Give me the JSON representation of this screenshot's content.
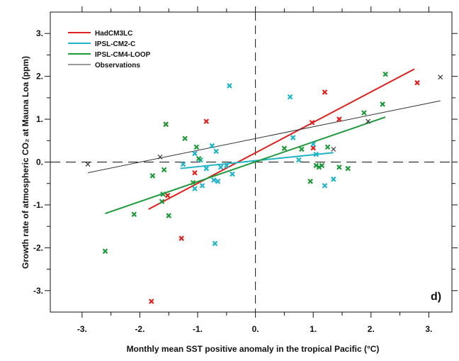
{
  "chart_data": {
    "type": "scatter",
    "title": "",
    "xlabel": "Monthly mean SST positive anomaly in the tropical Pacific (°C)",
    "ylabel": "Growth rate of atmospheric CO₂ at Mauna Loa (ppm)",
    "panel_label": "d)",
    "xlim": [
      -3.55,
      3.4
    ],
    "ylim": [
      -3.5,
      3.5
    ],
    "xticks": [
      -3,
      -2,
      -1,
      0,
      1,
      2,
      3
    ],
    "xtick_labels": [
      "-3.",
      "-2.",
      "-1.",
      "0.",
      "1.",
      "2.",
      "3."
    ],
    "yticks": [
      -3,
      -2,
      -1,
      0,
      1,
      2,
      3
    ],
    "ytick_labels": [
      "-3.",
      "-2.",
      "-1.",
      "0.",
      "1.",
      "2.",
      "3."
    ],
    "grid": false,
    "legend_position": "top-left",
    "reference_lines": {
      "x": 0,
      "y": 0,
      "style": "dashed"
    },
    "series": [
      {
        "name": "HadCM3LC",
        "color": "#e0201c",
        "marker": "x",
        "points": [
          [
            -1.8,
            -3.25
          ],
          [
            -1.55,
            0.88
          ],
          [
            -1.52,
            -0.78
          ],
          [
            -1.28,
            -1.78
          ],
          [
            -1.05,
            -0.25
          ],
          [
            -0.85,
            0.95
          ],
          [
            0.98,
            0.92
          ],
          [
            1.0,
            0.33
          ],
          [
            1.2,
            1.63
          ],
          [
            1.45,
            1.0
          ],
          [
            2.8,
            1.85
          ]
        ],
        "fit": [
          [
            -1.85,
            -1.1
          ],
          [
            2.75,
            2.17
          ]
        ]
      },
      {
        "name": "IPSL-CM2-C",
        "color": "#1fb3c8",
        "marker": "x",
        "points": [
          [
            -1.25,
            -0.05
          ],
          [
            -1.05,
            0.2
          ],
          [
            -0.95,
            0.05
          ],
          [
            -0.92,
            -0.55
          ],
          [
            -0.85,
            -0.15
          ],
          [
            -0.75,
            0.38
          ],
          [
            -0.72,
            -0.42
          ],
          [
            -0.7,
            -1.9
          ],
          [
            -0.68,
            0.25
          ],
          [
            -0.65,
            -0.45
          ],
          [
            -0.6,
            -0.12
          ],
          [
            -0.5,
            -0.08
          ],
          [
            -0.45,
            1.78
          ],
          [
            -0.4,
            -0.28
          ],
          [
            0.6,
            1.52
          ],
          [
            0.65,
            0.57
          ],
          [
            0.75,
            0.05
          ],
          [
            1.0,
            0.42
          ],
          [
            1.05,
            0.18
          ],
          [
            1.2,
            -0.55
          ],
          [
            1.35,
            -0.4
          ],
          [
            -1.05,
            -0.62
          ]
        ],
        "fit": [
          [
            -1.3,
            -0.15
          ],
          [
            1.35,
            0.22
          ]
        ]
      },
      {
        "name": "IPSL-CM4-LOOP",
        "color": "#1e9a3c",
        "marker": "x",
        "points": [
          [
            -2.6,
            -2.08
          ],
          [
            -2.1,
            -1.22
          ],
          [
            -1.78,
            -0.32
          ],
          [
            -1.62,
            -0.92
          ],
          [
            -1.6,
            -0.75
          ],
          [
            -1.58,
            -0.18
          ],
          [
            -1.5,
            -1.25
          ],
          [
            -1.55,
            0.88
          ],
          [
            -1.22,
            0.55
          ],
          [
            -1.08,
            -0.48
          ],
          [
            -1.02,
            0.35
          ],
          [
            -0.98,
            0.08
          ],
          [
            0.5,
            0.32
          ],
          [
            0.8,
            0.3
          ],
          [
            0.95,
            -0.45
          ],
          [
            1.05,
            -0.08
          ],
          [
            1.1,
            -0.12
          ],
          [
            1.15,
            -0.08
          ],
          [
            1.25,
            0.35
          ],
          [
            1.45,
            -0.12
          ],
          [
            1.6,
            -0.15
          ],
          [
            1.88,
            1.15
          ],
          [
            2.2,
            1.35
          ],
          [
            2.25,
            2.05
          ]
        ],
        "fit": [
          [
            -2.6,
            -1.2
          ],
          [
            2.25,
            1.05
          ]
        ]
      },
      {
        "name": "Observations",
        "color": "#333333",
        "marker": "x",
        "points": [
          [
            -2.9,
            -0.05
          ],
          [
            -1.65,
            0.12
          ],
          [
            1.35,
            0.3
          ],
          [
            1.95,
            0.95
          ],
          [
            3.2,
            1.98
          ]
        ],
        "fit": [
          [
            -2.9,
            -0.25
          ],
          [
            3.2,
            1.43
          ]
        ]
      }
    ]
  }
}
